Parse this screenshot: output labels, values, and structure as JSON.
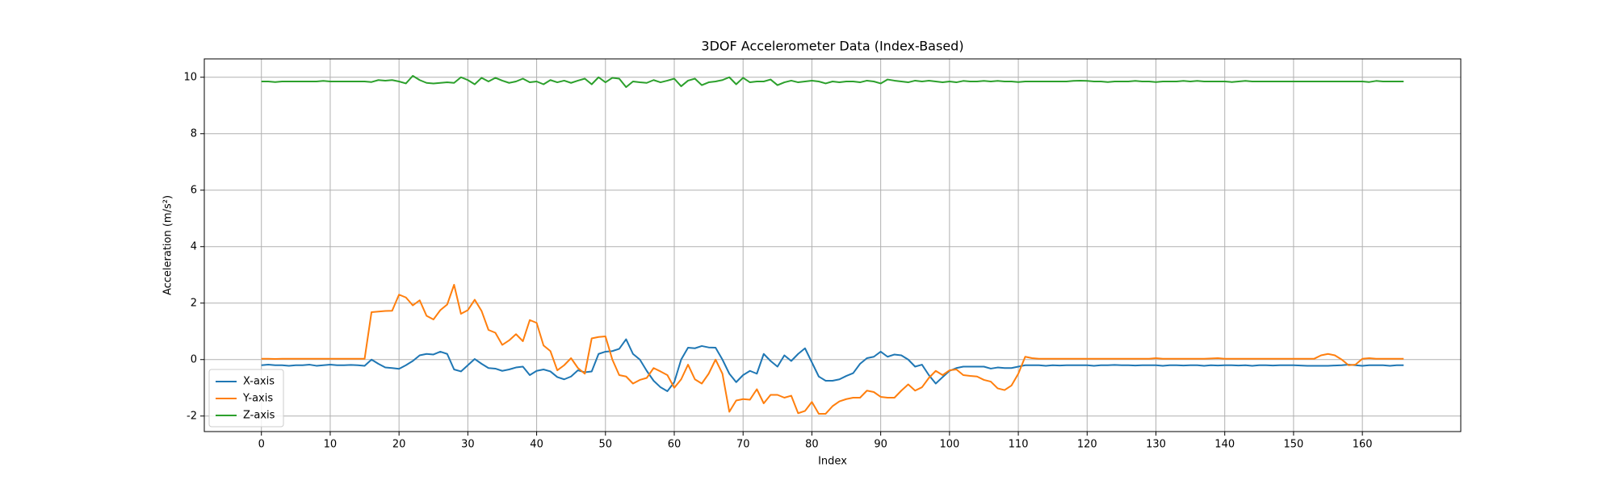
{
  "chart_data": {
    "type": "line",
    "title": "3DOF Accelerometer Data (Index-Based)",
    "xlabel": "Index",
    "ylabel": "Acceleration (m/s²)",
    "x": [
      0,
      1,
      2,
      3,
      4,
      5,
      6,
      7,
      8,
      9,
      10,
      11,
      12,
      13,
      14,
      15,
      16,
      17,
      18,
      19,
      20,
      21,
      22,
      23,
      24,
      25,
      26,
      27,
      28,
      29,
      30,
      31,
      32,
      33,
      34,
      35,
      36,
      37,
      38,
      39,
      40,
      41,
      42,
      43,
      44,
      45,
      46,
      47,
      48,
      49,
      50,
      51,
      52,
      53,
      54,
      55,
      56,
      57,
      58,
      59,
      60,
      61,
      62,
      63,
      64,
      65,
      66,
      67,
      68,
      69,
      70,
      71,
      72,
      73,
      74,
      75,
      76,
      77,
      78,
      79,
      80,
      81,
      82,
      83,
      84,
      85,
      86,
      87,
      88,
      89,
      90,
      91,
      92,
      93,
      94,
      95,
      96,
      97,
      98,
      99,
      100,
      101,
      102,
      103,
      104,
      105,
      106,
      107,
      108,
      109,
      110,
      111,
      112,
      113,
      114,
      115,
      116,
      117,
      118,
      119,
      120,
      121,
      122,
      123,
      124,
      125,
      126,
      127,
      128,
      129,
      130,
      131,
      132,
      133,
      134,
      135,
      136,
      137,
      138,
      139,
      140,
      141,
      142,
      143,
      144,
      145,
      146,
      147,
      148,
      149,
      150,
      151,
      152,
      153,
      154,
      155,
      156,
      157,
      158,
      159,
      160,
      161,
      162,
      163,
      164,
      165,
      166
    ],
    "series": [
      {
        "name": "X-axis",
        "color": "#1f77b4",
        "values": [
          -0.2,
          -0.18,
          -0.2,
          -0.2,
          -0.22,
          -0.2,
          -0.2,
          -0.18,
          -0.22,
          -0.2,
          -0.18,
          -0.2,
          -0.2,
          -0.19,
          -0.2,
          -0.22,
          0.0,
          -0.15,
          -0.28,
          -0.3,
          -0.33,
          -0.2,
          -0.05,
          0.15,
          0.2,
          0.18,
          0.28,
          0.2,
          -0.35,
          -0.42,
          -0.2,
          0.02,
          -0.15,
          -0.3,
          -0.32,
          -0.4,
          -0.35,
          -0.28,
          -0.25,
          -0.55,
          -0.4,
          -0.35,
          -0.42,
          -0.62,
          -0.7,
          -0.6,
          -0.38,
          -0.45,
          -0.42,
          0.2,
          0.28,
          0.3,
          0.38,
          0.72,
          0.2,
          0.0,
          -0.4,
          -0.75,
          -0.98,
          -1.12,
          -0.8,
          0.0,
          0.42,
          0.4,
          0.48,
          0.43,
          0.42,
          0.0,
          -0.5,
          -0.8,
          -0.55,
          -0.4,
          -0.5,
          0.2,
          -0.05,
          -0.25,
          0.15,
          -0.05,
          0.2,
          0.4,
          -0.1,
          -0.6,
          -0.75,
          -0.75,
          -0.7,
          -0.58,
          -0.48,
          -0.15,
          0.05,
          0.1,
          0.28,
          0.1,
          0.18,
          0.15,
          0.0,
          -0.25,
          -0.18,
          -0.55,
          -0.85,
          -0.62,
          -0.4,
          -0.3,
          -0.25,
          -0.25,
          -0.25,
          -0.25,
          -0.32,
          -0.28,
          -0.3,
          -0.3,
          -0.25,
          -0.2,
          -0.2,
          -0.2,
          -0.22,
          -0.2,
          -0.21,
          -0.2,
          -0.2,
          -0.2,
          -0.2,
          -0.22,
          -0.2,
          -0.2,
          -0.19,
          -0.2,
          -0.2,
          -0.21,
          -0.2,
          -0.2,
          -0.2,
          -0.22,
          -0.2,
          -0.2,
          -0.21,
          -0.2,
          -0.2,
          -0.22,
          -0.2,
          -0.21,
          -0.2,
          -0.2,
          -0.21,
          -0.2,
          -0.22,
          -0.2,
          -0.2,
          -0.21,
          -0.2,
          -0.2,
          -0.2,
          -0.21,
          -0.22,
          -0.22,
          -0.22,
          -0.22,
          -0.21,
          -0.2,
          -0.18,
          -0.2,
          -0.22,
          -0.2,
          -0.2,
          -0.2,
          -0.22,
          -0.2,
          -0.2
        ]
      },
      {
        "name": "Y-axis",
        "color": "#ff7f0e",
        "values": [
          0.03,
          0.03,
          0.02,
          0.03,
          0.03,
          0.03,
          0.03,
          0.03,
          0.03,
          0.03,
          0.03,
          0.03,
          0.03,
          0.03,
          0.03,
          0.03,
          1.68,
          1.7,
          1.72,
          1.73,
          2.3,
          2.2,
          1.92,
          2.1,
          1.55,
          1.42,
          1.75,
          1.95,
          2.65,
          1.62,
          1.75,
          2.12,
          1.72,
          1.05,
          0.95,
          0.52,
          0.68,
          0.9,
          0.65,
          1.4,
          1.3,
          0.5,
          0.3,
          -0.38,
          -0.2,
          0.05,
          -0.3,
          -0.5,
          0.75,
          0.8,
          0.82,
          0.0,
          -0.55,
          -0.6,
          -0.85,
          -0.72,
          -0.65,
          -0.3,
          -0.42,
          -0.55,
          -1.0,
          -0.7,
          -0.18,
          -0.7,
          -0.85,
          -0.5,
          0.0,
          -0.5,
          -1.85,
          -1.45,
          -1.4,
          -1.42,
          -1.05,
          -1.55,
          -1.25,
          -1.25,
          -1.35,
          -1.28,
          -1.9,
          -1.82,
          -1.5,
          -1.92,
          -1.92,
          -1.65,
          -1.48,
          -1.4,
          -1.35,
          -1.35,
          -1.1,
          -1.15,
          -1.32,
          -1.35,
          -1.35,
          -1.1,
          -0.88,
          -1.1,
          -0.98,
          -0.65,
          -0.4,
          -0.55,
          -0.38,
          -0.35,
          -0.55,
          -0.58,
          -0.6,
          -0.72,
          -0.78,
          -1.02,
          -1.08,
          -0.92,
          -0.5,
          0.1,
          0.05,
          0.03,
          0.03,
          0.03,
          0.03,
          0.03,
          0.03,
          0.03,
          0.03,
          0.03,
          0.03,
          0.03,
          0.03,
          0.03,
          0.03,
          0.03,
          0.03,
          0.03,
          0.05,
          0.03,
          0.03,
          0.03,
          0.03,
          0.03,
          0.03,
          0.03,
          0.04,
          0.05,
          0.03,
          0.03,
          0.03,
          0.03,
          0.03,
          0.03,
          0.03,
          0.03,
          0.03,
          0.03,
          0.03,
          0.03,
          0.03,
          0.03,
          0.15,
          0.2,
          0.15,
          0.0,
          -0.2,
          -0.18,
          0.03,
          0.05,
          0.03,
          0.03,
          0.03,
          0.03,
          0.03
        ]
      },
      {
        "name": "Z-axis",
        "color": "#2ca02c",
        "values": [
          9.85,
          9.85,
          9.83,
          9.85,
          9.85,
          9.85,
          9.85,
          9.85,
          9.85,
          9.87,
          9.85,
          9.85,
          9.85,
          9.85,
          9.85,
          9.85,
          9.83,
          9.9,
          9.88,
          9.9,
          9.85,
          9.78,
          10.05,
          9.9,
          9.8,
          9.78,
          9.8,
          9.82,
          9.8,
          10.0,
          9.9,
          9.75,
          9.98,
          9.85,
          9.98,
          9.88,
          9.8,
          9.85,
          9.95,
          9.82,
          9.85,
          9.75,
          9.9,
          9.82,
          9.88,
          9.8,
          9.88,
          9.95,
          9.75,
          10.0,
          9.82,
          9.98,
          9.95,
          9.65,
          9.85,
          9.82,
          9.8,
          9.9,
          9.82,
          9.88,
          9.95,
          9.68,
          9.88,
          9.95,
          9.72,
          9.82,
          9.85,
          9.9,
          10.0,
          9.75,
          9.98,
          9.82,
          9.85,
          9.85,
          9.92,
          9.72,
          9.82,
          9.88,
          9.82,
          9.85,
          9.88,
          9.85,
          9.78,
          9.85,
          9.82,
          9.85,
          9.85,
          9.82,
          9.88,
          9.85,
          9.78,
          9.92,
          9.88,
          9.85,
          9.82,
          9.88,
          9.85,
          9.88,
          9.85,
          9.82,
          9.85,
          9.82,
          9.87,
          9.85,
          9.85,
          9.87,
          9.85,
          9.87,
          9.85,
          9.85,
          9.83,
          9.85,
          9.85,
          9.85,
          9.85,
          9.85,
          9.85,
          9.85,
          9.87,
          9.88,
          9.87,
          9.85,
          9.85,
          9.83,
          9.85,
          9.85,
          9.85,
          9.87,
          9.85,
          9.85,
          9.83,
          9.85,
          9.85,
          9.85,
          9.87,
          9.85,
          9.87,
          9.85,
          9.85,
          9.85,
          9.85,
          9.83,
          9.85,
          9.87,
          9.85,
          9.85,
          9.85,
          9.85,
          9.85,
          9.85,
          9.85,
          9.85,
          9.85,
          9.85,
          9.85,
          9.85,
          9.85,
          9.85,
          9.85,
          9.85,
          9.85,
          9.83,
          9.87,
          9.85,
          9.85,
          9.85,
          9.85
        ]
      }
    ],
    "xlim": [
      -8.3,
      174.3
    ],
    "ylim": [
      -2.55,
      10.65
    ],
    "xticks": [
      0,
      10,
      20,
      30,
      40,
      50,
      60,
      70,
      80,
      90,
      100,
      110,
      120,
      130,
      140,
      150,
      160
    ],
    "yticks": [
      -2,
      0,
      2,
      4,
      6,
      8,
      10
    ],
    "grid": true,
    "legend": "lower left"
  }
}
